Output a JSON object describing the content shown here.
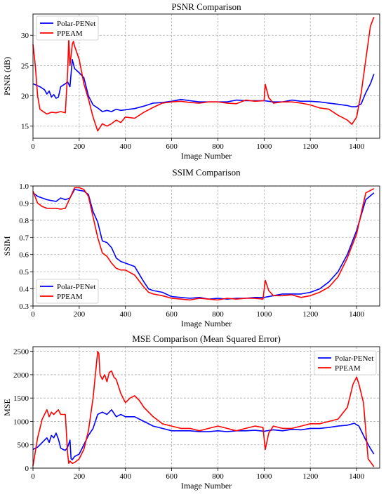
{
  "chart_data": [
    {
      "type": "line",
      "title": "PSNR Comparison",
      "xlabel": "Image Number",
      "ylabel": "PSNR (dB)",
      "xlim": [
        0,
        1500
      ],
      "ylim": [
        13,
        33.5
      ],
      "xticks": [
        0,
        200,
        400,
        600,
        800,
        1000,
        1200,
        1400
      ],
      "yticks": [
        15,
        20,
        25,
        30
      ],
      "ytick_labels": [
        "15",
        "20",
        "25",
        "30"
      ],
      "grid": true,
      "legend_position": "top-left",
      "series": [
        {
          "name": "Polar-PENet",
          "color": "#0000ff",
          "x": [
            0,
            30,
            50,
            60,
            70,
            80,
            90,
            100,
            110,
            120,
            140,
            150,
            160,
            170,
            180,
            200,
            220,
            240,
            260,
            280,
            300,
            320,
            340,
            360,
            380,
            400,
            440,
            480,
            520,
            560,
            600,
            640,
            680,
            720,
            760,
            800,
            840,
            880,
            920,
            960,
            1000,
            1040,
            1080,
            1120,
            1160,
            1200,
            1240,
            1280,
            1320,
            1360,
            1380,
            1400,
            1420,
            1440,
            1460,
            1475
          ],
          "y": [
            22,
            21.5,
            21,
            20.3,
            20.8,
            19.8,
            20.2,
            19.6,
            19.8,
            21.5,
            22,
            22.3,
            21.5,
            26,
            24.5,
            23.8,
            23,
            20,
            18.5,
            18,
            17.4,
            17.6,
            17.4,
            17.8,
            17.6,
            17.7,
            17.9,
            18.3,
            18.8,
            18.9,
            19.1,
            19.4,
            19.2,
            19,
            19,
            19,
            19,
            19.3,
            19.2,
            19.2,
            19.2,
            19,
            19,
            19.3,
            19.1,
            19.1,
            19,
            18.8,
            18.6,
            18.4,
            18.2,
            18.2,
            18.7,
            20.5,
            22,
            23.6
          ]
        },
        {
          "name": "PPEAM",
          "color": "#ff0000",
          "x": [
            0,
            10,
            20,
            30,
            40,
            60,
            80,
            100,
            120,
            140,
            150,
            155,
            160,
            170,
            175,
            180,
            200,
            220,
            240,
            260,
            280,
            300,
            320,
            340,
            360,
            380,
            400,
            440,
            480,
            520,
            560,
            600,
            640,
            680,
            720,
            760,
            800,
            840,
            880,
            920,
            960,
            1000,
            1005,
            1020,
            1040,
            1080,
            1120,
            1160,
            1200,
            1240,
            1280,
            1320,
            1360,
            1380,
            1400,
            1420,
            1440,
            1460,
            1475
          ],
          "y": [
            28.5,
            25,
            20,
            17.8,
            17.5,
            17,
            17.3,
            17.2,
            17.4,
            17.2,
            24,
            29.5,
            25,
            28.5,
            29,
            28.2,
            26,
            22,
            19.5,
            16.5,
            14.2,
            15.4,
            15,
            15.4,
            16,
            15.6,
            16.5,
            16.3,
            17.3,
            18.1,
            18.8,
            19,
            19.1,
            18.9,
            18.8,
            19,
            19,
            18.8,
            18.7,
            19.3,
            19.1,
            19.2,
            21.9,
            19.7,
            18.8,
            19,
            19,
            18.8,
            18.5,
            18,
            17.8,
            16.8,
            16,
            15.3,
            16.5,
            20.5,
            26,
            31.5,
            33
          ]
        }
      ]
    },
    {
      "type": "line",
      "title": "SSIM Comparison",
      "xlabel": "Image Number",
      "ylabel": "SSIM",
      "xlim": [
        0,
        1500
      ],
      "ylim": [
        0.3,
        1.0
      ],
      "xticks": [
        0,
        200,
        400,
        600,
        800,
        1000,
        1200,
        1400
      ],
      "yticks": [
        0.3,
        0.4,
        0.5,
        0.6,
        0.7,
        0.8,
        0.9,
        1.0
      ],
      "ytick_labels": [
        "0.3",
        "0.4",
        "0.5",
        "0.6",
        "0.7",
        "0.8",
        "0.9",
        "1.0"
      ],
      "grid": true,
      "legend_position": "bottom-left",
      "series": [
        {
          "name": "Polar-PENet",
          "color": "#0000ff",
          "x": [
            0,
            20,
            40,
            60,
            80,
            100,
            120,
            140,
            160,
            180,
            200,
            220,
            240,
            260,
            280,
            300,
            320,
            340,
            360,
            380,
            400,
            440,
            480,
            500,
            520,
            560,
            600,
            640,
            680,
            720,
            760,
            800,
            840,
            880,
            920,
            960,
            1000,
            1040,
            1080,
            1120,
            1160,
            1200,
            1240,
            1280,
            1320,
            1360,
            1400,
            1440,
            1475
          ],
          "y": [
            0.96,
            0.94,
            0.93,
            0.92,
            0.915,
            0.91,
            0.93,
            0.92,
            0.93,
            0.98,
            0.975,
            0.97,
            0.95,
            0.85,
            0.79,
            0.68,
            0.67,
            0.64,
            0.58,
            0.56,
            0.55,
            0.53,
            0.44,
            0.4,
            0.39,
            0.38,
            0.355,
            0.35,
            0.345,
            0.35,
            0.34,
            0.345,
            0.34,
            0.345,
            0.345,
            0.35,
            0.35,
            0.36,
            0.37,
            0.37,
            0.37,
            0.38,
            0.4,
            0.44,
            0.5,
            0.6,
            0.74,
            0.92,
            0.96
          ]
        },
        {
          "name": "PPEAM",
          "color": "#ff0000",
          "x": [
            0,
            20,
            40,
            60,
            80,
            100,
            120,
            140,
            160,
            180,
            200,
            220,
            240,
            260,
            280,
            300,
            320,
            340,
            360,
            380,
            400,
            440,
            480,
            500,
            520,
            560,
            600,
            640,
            680,
            720,
            760,
            800,
            840,
            880,
            920,
            960,
            995,
            1005,
            1020,
            1040,
            1080,
            1120,
            1160,
            1200,
            1240,
            1280,
            1320,
            1360,
            1400,
            1440,
            1475
          ],
          "y": [
            0.97,
            0.9,
            0.88,
            0.87,
            0.87,
            0.87,
            0.865,
            0.87,
            0.93,
            0.99,
            0.99,
            0.98,
            0.94,
            0.82,
            0.7,
            0.61,
            0.59,
            0.55,
            0.52,
            0.51,
            0.51,
            0.48,
            0.41,
            0.38,
            0.37,
            0.36,
            0.345,
            0.34,
            0.335,
            0.345,
            0.34,
            0.335,
            0.345,
            0.34,
            0.345,
            0.345,
            0.34,
            0.45,
            0.39,
            0.36,
            0.36,
            0.365,
            0.35,
            0.36,
            0.38,
            0.41,
            0.47,
            0.58,
            0.72,
            0.96,
            0.985
          ]
        }
      ]
    },
    {
      "type": "line",
      "title": "MSE Comparison (Mean Squared Error)",
      "xlabel": "Image Number",
      "ylabel": "MSE",
      "xlim": [
        0,
        1500
      ],
      "ylim": [
        0,
        2600
      ],
      "xticks": [
        0,
        200,
        400,
        600,
        800,
        1000,
        1200,
        1400
      ],
      "yticks": [
        0,
        500,
        1000,
        1500,
        2000,
        2500
      ],
      "ytick_labels": [
        "0",
        "500",
        "1000",
        "1500",
        "2000",
        "2500"
      ],
      "grid": true,
      "legend_position": "top-right",
      "series": [
        {
          "name": "Polar-PENet",
          "color": "#0000ff",
          "x": [
            0,
            20,
            40,
            60,
            70,
            80,
            90,
            100,
            110,
            120,
            130,
            140,
            150,
            160,
            165,
            170,
            180,
            200,
            220,
            240,
            260,
            280,
            300,
            320,
            340,
            360,
            380,
            400,
            440,
            480,
            520,
            560,
            600,
            640,
            680,
            720,
            760,
            800,
            840,
            880,
            920,
            960,
            1000,
            1040,
            1080,
            1120,
            1160,
            1200,
            1240,
            1280,
            1320,
            1360,
            1390,
            1410,
            1440,
            1460,
            1475
          ],
          "y": [
            400,
            450,
            550,
            650,
            550,
            700,
            650,
            750,
            620,
            430,
            400,
            380,
            450,
            600,
            200,
            180,
            250,
            300,
            500,
            700,
            850,
            1150,
            1200,
            1150,
            1250,
            1100,
            1150,
            1100,
            1100,
            1000,
            900,
            850,
            800,
            800,
            800,
            780,
            780,
            800,
            780,
            800,
            800,
            810,
            790,
            820,
            800,
            830,
            820,
            850,
            850,
            870,
            900,
            920,
            960,
            900,
            600,
            420,
            300
          ]
        },
        {
          "name": "PPEAM",
          "color": "#ff0000",
          "x": [
            0,
            20,
            40,
            60,
            70,
            80,
            90,
            100,
            110,
            120,
            140,
            150,
            155,
            160,
            170,
            180,
            200,
            220,
            240,
            260,
            280,
            285,
            290,
            300,
            310,
            320,
            330,
            340,
            350,
            360,
            380,
            400,
            420,
            440,
            460,
            480,
            520,
            560,
            600,
            640,
            680,
            720,
            760,
            800,
            840,
            880,
            920,
            960,
            995,
            1005,
            1020,
            1040,
            1080,
            1120,
            1160,
            1200,
            1240,
            1280,
            1320,
            1360,
            1385,
            1400,
            1410,
            1430,
            1450,
            1475
          ],
          "y": [
            50,
            650,
            1050,
            1250,
            1100,
            1200,
            1150,
            1200,
            1250,
            1150,
            1150,
            300,
            100,
            150,
            100,
            120,
            200,
            400,
            800,
            1500,
            2500,
            2450,
            2000,
            1900,
            2000,
            1850,
            2050,
            2080,
            1950,
            1900,
            1600,
            1400,
            1500,
            1550,
            1450,
            1300,
            1100,
            950,
            900,
            850,
            850,
            800,
            850,
            900,
            850,
            800,
            850,
            900,
            870,
            400,
            750,
            900,
            850,
            850,
            900,
            950,
            950,
            1000,
            1050,
            1300,
            1800,
            1950,
            1800,
            1400,
            200,
            30
          ]
        }
      ]
    }
  ]
}
